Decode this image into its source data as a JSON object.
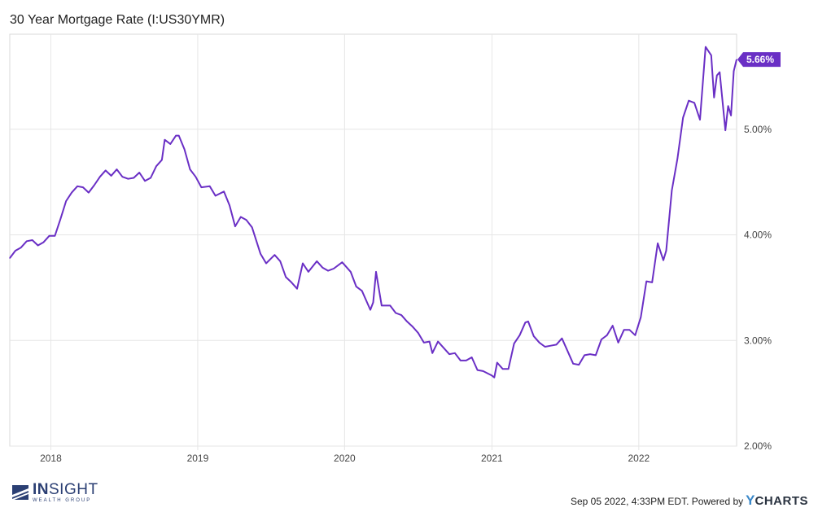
{
  "title": "30 Year Mortgage Rate (I:US30YMR)",
  "footer": {
    "timestamp": "Sep 05 2022, 4:33PM EDT.",
    "powered_by": "Powered by",
    "brand_y": "Y",
    "brand_rest": "CHARTS"
  },
  "logo": {
    "main_bold": "IN",
    "main_rest": "SIGHT",
    "sub": "WEALTH GROUP",
    "color": "#2b3f73"
  },
  "colors": {
    "line": "#6a2fc5",
    "grid": "#e6e6e6",
    "badge": "#6a2fc5"
  },
  "chart_data": {
    "type": "line",
    "title": "30 Year Mortgage Rate (I:US30YMR)",
    "y_unit": "%",
    "ylim": [
      2.0,
      5.9
    ],
    "xlim": [
      "2017-09-21",
      "2022-09-01"
    ],
    "y_ticks": [
      "2.00%",
      "3.00%",
      "4.00%",
      "5.00%"
    ],
    "y_tick_values": [
      2.0,
      3.0,
      4.0,
      5.0
    ],
    "x_ticks": [
      "2018",
      "2019",
      "2020",
      "2021",
      "2022"
    ],
    "x_tick_dates": [
      "2018-01-01",
      "2019-01-01",
      "2020-01-01",
      "2021-01-01",
      "2022-01-01"
    ],
    "last_value_label": "5.66%",
    "last_value": 5.66,
    "grid": true,
    "series": [
      {
        "points": [
          [
            "2017-09-21",
            3.78
          ],
          [
            "2017-10-05",
            3.85
          ],
          [
            "2017-10-19",
            3.88
          ],
          [
            "2017-11-02",
            3.94
          ],
          [
            "2017-11-16",
            3.95
          ],
          [
            "2017-11-30",
            3.9
          ],
          [
            "2017-12-14",
            3.93
          ],
          [
            "2017-12-28",
            3.99
          ],
          [
            "2018-01-11",
            3.99
          ],
          [
            "2018-01-25",
            4.15
          ],
          [
            "2018-02-08",
            4.32
          ],
          [
            "2018-02-22",
            4.4
          ],
          [
            "2018-03-08",
            4.46
          ],
          [
            "2018-03-22",
            4.45
          ],
          [
            "2018-04-05",
            4.4
          ],
          [
            "2018-04-19",
            4.47
          ],
          [
            "2018-05-03",
            4.55
          ],
          [
            "2018-05-17",
            4.61
          ],
          [
            "2018-05-31",
            4.56
          ],
          [
            "2018-06-14",
            4.62
          ],
          [
            "2018-06-28",
            4.55
          ],
          [
            "2018-07-12",
            4.53
          ],
          [
            "2018-07-26",
            4.54
          ],
          [
            "2018-08-09",
            4.59
          ],
          [
            "2018-08-23",
            4.51
          ],
          [
            "2018-09-06",
            4.54
          ],
          [
            "2018-09-20",
            4.65
          ],
          [
            "2018-10-04",
            4.71
          ],
          [
            "2018-10-11",
            4.9
          ],
          [
            "2018-10-25",
            4.86
          ],
          [
            "2018-11-08",
            4.94
          ],
          [
            "2018-11-15",
            4.94
          ],
          [
            "2018-11-29",
            4.81
          ],
          [
            "2018-12-13",
            4.62
          ],
          [
            "2018-12-27",
            4.55
          ],
          [
            "2019-01-10",
            4.45
          ],
          [
            "2019-01-31",
            4.46
          ],
          [
            "2019-02-14",
            4.37
          ],
          [
            "2019-03-07",
            4.41
          ],
          [
            "2019-03-21",
            4.28
          ],
          [
            "2019-04-04",
            4.08
          ],
          [
            "2019-04-18",
            4.17
          ],
          [
            "2019-05-02",
            4.14
          ],
          [
            "2019-05-16",
            4.07
          ],
          [
            "2019-06-06",
            3.82
          ],
          [
            "2019-06-20",
            3.73
          ],
          [
            "2019-07-11",
            3.81
          ],
          [
            "2019-07-25",
            3.75
          ],
          [
            "2019-08-08",
            3.6
          ],
          [
            "2019-08-22",
            3.55
          ],
          [
            "2019-09-05",
            3.49
          ],
          [
            "2019-09-19",
            3.73
          ],
          [
            "2019-10-03",
            3.65
          ],
          [
            "2019-10-24",
            3.75
          ],
          [
            "2019-11-07",
            3.69
          ],
          [
            "2019-11-21",
            3.66
          ],
          [
            "2019-12-05",
            3.68
          ],
          [
            "2019-12-26",
            3.74
          ],
          [
            "2020-01-16",
            3.65
          ],
          [
            "2020-01-30",
            3.51
          ],
          [
            "2020-02-13",
            3.47
          ],
          [
            "2020-03-05",
            3.29
          ],
          [
            "2020-03-12",
            3.36
          ],
          [
            "2020-03-19",
            3.65
          ],
          [
            "2020-04-02",
            3.33
          ],
          [
            "2020-04-23",
            3.33
          ],
          [
            "2020-05-07",
            3.26
          ],
          [
            "2020-05-21",
            3.24
          ],
          [
            "2020-06-04",
            3.18
          ],
          [
            "2020-06-18",
            3.13
          ],
          [
            "2020-07-02",
            3.07
          ],
          [
            "2020-07-16",
            2.98
          ],
          [
            "2020-07-30",
            2.99
          ],
          [
            "2020-08-06",
            2.88
          ],
          [
            "2020-08-20",
            2.99
          ],
          [
            "2020-09-03",
            2.93
          ],
          [
            "2020-09-17",
            2.87
          ],
          [
            "2020-10-01",
            2.88
          ],
          [
            "2020-10-15",
            2.81
          ],
          [
            "2020-10-29",
            2.81
          ],
          [
            "2020-11-12",
            2.84
          ],
          [
            "2020-11-26",
            2.72
          ],
          [
            "2020-12-10",
            2.71
          ],
          [
            "2020-12-31",
            2.67
          ],
          [
            "2021-01-07",
            2.65
          ],
          [
            "2021-01-14",
            2.79
          ],
          [
            "2021-01-28",
            2.73
          ],
          [
            "2021-02-11",
            2.73
          ],
          [
            "2021-02-25",
            2.97
          ],
          [
            "2021-03-11",
            3.05
          ],
          [
            "2021-03-25",
            3.17
          ],
          [
            "2021-04-01",
            3.18
          ],
          [
            "2021-04-15",
            3.04
          ],
          [
            "2021-04-29",
            2.98
          ],
          [
            "2021-05-13",
            2.94
          ],
          [
            "2021-05-27",
            2.95
          ],
          [
            "2021-06-10",
            2.96
          ],
          [
            "2021-06-24",
            3.02
          ],
          [
            "2021-07-08",
            2.9
          ],
          [
            "2021-07-22",
            2.78
          ],
          [
            "2021-08-05",
            2.77
          ],
          [
            "2021-08-19",
            2.86
          ],
          [
            "2021-09-02",
            2.87
          ],
          [
            "2021-09-16",
            2.86
          ],
          [
            "2021-09-30",
            3.01
          ],
          [
            "2021-10-14",
            3.05
          ],
          [
            "2021-10-28",
            3.14
          ],
          [
            "2021-11-11",
            2.98
          ],
          [
            "2021-11-25",
            3.1
          ],
          [
            "2021-12-09",
            3.1
          ],
          [
            "2021-12-23",
            3.05
          ],
          [
            "2022-01-06",
            3.22
          ],
          [
            "2022-01-20",
            3.56
          ],
          [
            "2022-02-03",
            3.55
          ],
          [
            "2022-02-17",
            3.92
          ],
          [
            "2022-03-03",
            3.76
          ],
          [
            "2022-03-10",
            3.85
          ],
          [
            "2022-03-24",
            4.42
          ],
          [
            "2022-04-07",
            4.72
          ],
          [
            "2022-04-21",
            5.11
          ],
          [
            "2022-05-05",
            5.27
          ],
          [
            "2022-05-19",
            5.25
          ],
          [
            "2022-06-02",
            5.09
          ],
          [
            "2022-06-16",
            5.78
          ],
          [
            "2022-06-30",
            5.7
          ],
          [
            "2022-07-07",
            5.3
          ],
          [
            "2022-07-14",
            5.51
          ],
          [
            "2022-07-21",
            5.54
          ],
          [
            "2022-08-04",
            4.99
          ],
          [
            "2022-08-11",
            5.22
          ],
          [
            "2022-08-18",
            5.13
          ],
          [
            "2022-08-25",
            5.55
          ],
          [
            "2022-09-01",
            5.66
          ]
        ]
      }
    ]
  }
}
